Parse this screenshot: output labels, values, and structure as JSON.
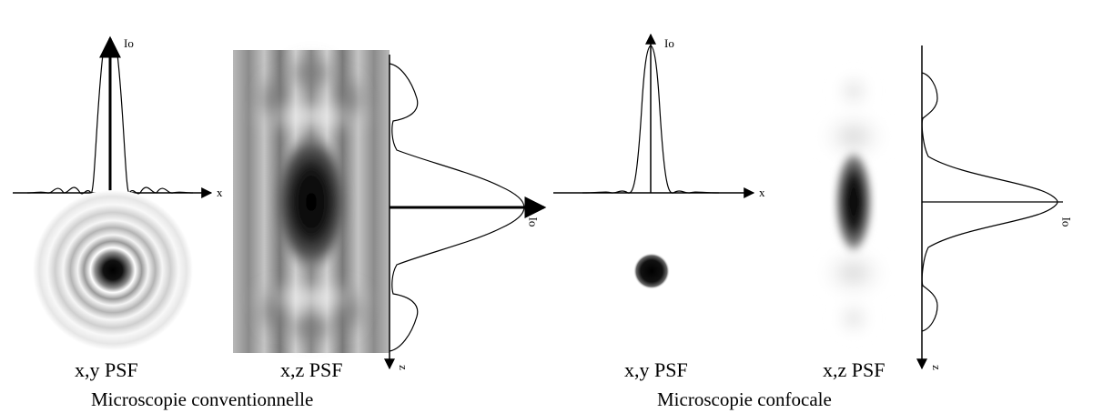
{
  "labels": {
    "axis_x": "x",
    "axis_z": "z",
    "axis_i0": "Io",
    "xy_psf": "x,y PSF",
    "xz_psf": "x,z PSF",
    "conventional": "Microscopie conventionnelle",
    "confocal": "Microscopie confocale"
  },
  "colors": {
    "ink": "#000000",
    "background": "#ffffff"
  }
}
